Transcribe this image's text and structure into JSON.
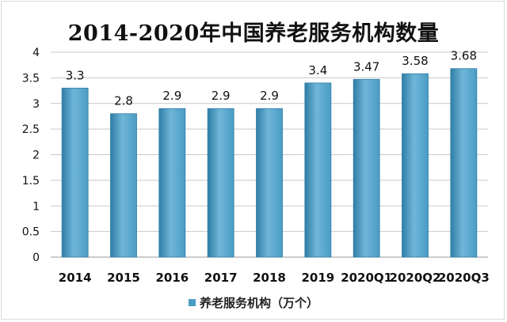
{
  "chart_data": {
    "type": "bar",
    "title": "2014-2020年中国养老服务机构数量",
    "categories": [
      "2014",
      "2015",
      "2016",
      "2017",
      "2018",
      "2019",
      "2020Q1",
      "2020Q2",
      "2020Q3"
    ],
    "series": [
      {
        "name": "养老服务机构（万个）",
        "values": [
          3.3,
          2.8,
          2.9,
          2.9,
          2.9,
          3.4,
          3.47,
          3.58,
          3.68
        ]
      }
    ],
    "data_labels": [
      "3.3",
      "2.8",
      "2.9",
      "2.9",
      "2.9",
      "3.4",
      "3.47",
      "3.58",
      "3.68"
    ],
    "y_ticks": [
      "0",
      "0.5",
      "1",
      "1.5",
      "2",
      "2.5",
      "3",
      "3.5",
      "4"
    ],
    "ylim": [
      0,
      4
    ],
    "grid": true,
    "legend_position": "bottom",
    "colors": {
      "bar": "#4a9cc4",
      "bar_light": "#6fb6d8",
      "bar_dark": "#2f7da6",
      "grid": "#c8c8c8"
    }
  }
}
